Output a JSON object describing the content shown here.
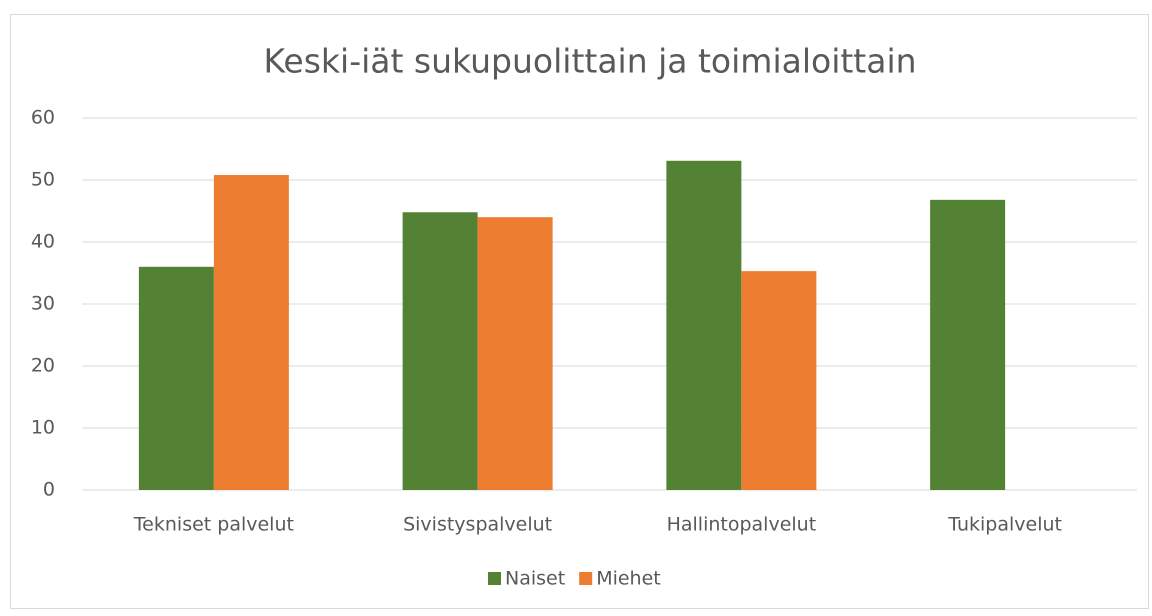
{
  "chart_data": {
    "type": "bar",
    "title": "Keski-iät sukupuolittain ja toimialoittain",
    "categories": [
      "Tekniset palvelut",
      "Sivistyspalvelut",
      "Hallintopalvelut",
      "Tukipalvelut"
    ],
    "series": [
      {
        "name": "Naiset",
        "color": "#548235",
        "values": [
          36,
          44.8,
          53.1,
          46.8
        ]
      },
      {
        "name": "Miehet",
        "color": "#ed7d31",
        "values": [
          50.8,
          44,
          35.3,
          null
        ]
      }
    ],
    "ylim": [
      0,
      60
    ],
    "yticks": [
      0,
      10,
      20,
      30,
      40,
      50,
      60
    ],
    "grid": true,
    "legend": "bottom"
  }
}
